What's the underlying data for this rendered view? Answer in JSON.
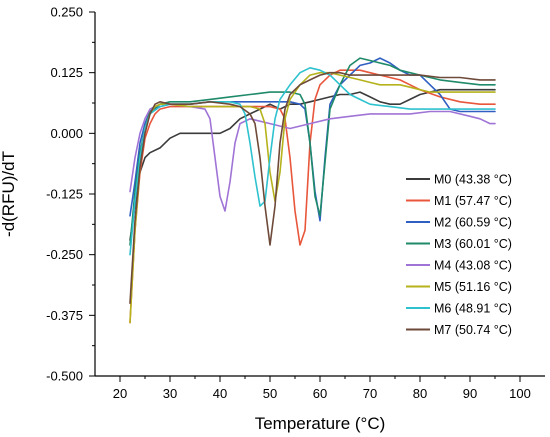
{
  "chart_data": {
    "type": "line",
    "title": "",
    "xlabel": "Temperature (°C)",
    "ylabel": "-d(RFU)/dT",
    "xlim": [
      15,
      105
    ],
    "ylim": [
      -0.5,
      0.25
    ],
    "x_ticks": [
      "20",
      "30",
      "40",
      "50",
      "60",
      "70",
      "80",
      "90",
      "100"
    ],
    "y_ticks": [
      "0.250",
      "0.125",
      "0.000",
      "-0.125",
      "-0.250",
      "-0.375",
      "-0.500"
    ],
    "grid": false,
    "legend_position": "right",
    "series": [
      {
        "name": "M0 (43.38 °C)",
        "color": "#3b3b3b",
        "points": [
          [
            22,
            -0.22
          ],
          [
            23,
            -0.15
          ],
          [
            24,
            -0.08
          ],
          [
            25,
            -0.05
          ],
          [
            26,
            -0.04
          ],
          [
            28,
            -0.03
          ],
          [
            30,
            -0.01
          ],
          [
            32,
            0.0
          ],
          [
            34,
            0.0
          ],
          [
            36,
            0.0
          ],
          [
            38,
            0.0
          ],
          [
            40,
            0.0
          ],
          [
            42,
            0.01
          ],
          [
            44,
            0.03
          ],
          [
            46,
            0.04
          ],
          [
            48,
            0.05
          ],
          [
            50,
            0.06
          ],
          [
            52,
            0.05
          ],
          [
            54,
            0.06
          ],
          [
            56,
            0.06
          ],
          [
            58,
            0.065
          ],
          [
            60,
            0.07
          ],
          [
            62,
            0.075
          ],
          [
            64,
            0.08
          ],
          [
            66,
            0.08
          ],
          [
            68,
            0.085
          ],
          [
            70,
            0.075
          ],
          [
            72,
            0.065
          ],
          [
            74,
            0.06
          ],
          [
            76,
            0.06
          ],
          [
            78,
            0.07
          ],
          [
            80,
            0.08
          ],
          [
            82,
            0.085
          ],
          [
            84,
            0.09
          ],
          [
            86,
            0.09
          ],
          [
            88,
            0.09
          ],
          [
            90,
            0.09
          ],
          [
            92,
            0.09
          ],
          [
            94,
            0.09
          ],
          [
            95,
            0.09
          ]
        ]
      },
      {
        "name": "M1 (57.47 °C)",
        "color": "#e8563b",
        "points": [
          [
            22,
            -0.39
          ],
          [
            23,
            -0.2
          ],
          [
            24,
            -0.08
          ],
          [
            25,
            -0.01
          ],
          [
            26,
            0.02
          ],
          [
            27,
            0.04
          ],
          [
            28,
            0.05
          ],
          [
            30,
            0.055
          ],
          [
            34,
            0.055
          ],
          [
            38,
            0.055
          ],
          [
            42,
            0.055
          ],
          [
            46,
            0.055
          ],
          [
            50,
            0.055
          ],
          [
            52,
            0.05
          ],
          [
            53,
            0.03
          ],
          [
            54,
            -0.05
          ],
          [
            55,
            -0.16
          ],
          [
            56,
            -0.23
          ],
          [
            57,
            -0.2
          ],
          [
            58,
            -0.02
          ],
          [
            59,
            0.07
          ],
          [
            60,
            0.1
          ],
          [
            62,
            0.12
          ],
          [
            64,
            0.13
          ],
          [
            66,
            0.13
          ],
          [
            68,
            0.13
          ],
          [
            70,
            0.125
          ],
          [
            72,
            0.12
          ],
          [
            74,
            0.115
          ],
          [
            76,
            0.11
          ],
          [
            78,
            0.1
          ],
          [
            80,
            0.09
          ],
          [
            84,
            0.075
          ],
          [
            88,
            0.065
          ],
          [
            92,
            0.06
          ],
          [
            95,
            0.06
          ]
        ]
      },
      {
        "name": "M2 (60.59 °C)",
        "color": "#2f5fc2",
        "points": [
          [
            22,
            -0.17
          ],
          [
            23,
            -0.1
          ],
          [
            24,
            -0.02
          ],
          [
            25,
            0.02
          ],
          [
            26,
            0.045
          ],
          [
            28,
            0.055
          ],
          [
            30,
            0.06
          ],
          [
            34,
            0.06
          ],
          [
            38,
            0.065
          ],
          [
            42,
            0.065
          ],
          [
            46,
            0.065
          ],
          [
            50,
            0.065
          ],
          [
            54,
            0.065
          ],
          [
            56,
            0.06
          ],
          [
            57,
            0.05
          ],
          [
            58,
            -0.02
          ],
          [
            59,
            -0.12
          ],
          [
            60,
            -0.18
          ],
          [
            61,
            -0.05
          ],
          [
            62,
            0.06
          ],
          [
            64,
            0.1
          ],
          [
            66,
            0.12
          ],
          [
            68,
            0.14
          ],
          [
            70,
            0.145
          ],
          [
            72,
            0.155
          ],
          [
            74,
            0.145
          ],
          [
            76,
            0.13
          ],
          [
            78,
            0.12
          ],
          [
            80,
            0.12
          ],
          [
            82,
            0.1
          ],
          [
            84,
            0.08
          ],
          [
            86,
            0.05
          ],
          [
            88,
            0.045
          ],
          [
            92,
            0.045
          ],
          [
            95,
            0.045
          ]
        ]
      },
      {
        "name": "M3 (60.01 °C)",
        "color": "#1f8a6a",
        "points": [
          [
            22,
            -0.23
          ],
          [
            23,
            -0.12
          ],
          [
            24,
            -0.04
          ],
          [
            25,
            0.01
          ],
          [
            26,
            0.045
          ],
          [
            28,
            0.06
          ],
          [
            30,
            0.065
          ],
          [
            34,
            0.065
          ],
          [
            38,
            0.07
          ],
          [
            42,
            0.075
          ],
          [
            46,
            0.08
          ],
          [
            50,
            0.085
          ],
          [
            54,
            0.085
          ],
          [
            56,
            0.08
          ],
          [
            57,
            0.06
          ],
          [
            58,
            -0.02
          ],
          [
            59,
            -0.13
          ],
          [
            60,
            -0.17
          ],
          [
            61,
            -0.06
          ],
          [
            62,
            0.05
          ],
          [
            64,
            0.1
          ],
          [
            66,
            0.14
          ],
          [
            68,
            0.155
          ],
          [
            70,
            0.15
          ],
          [
            72,
            0.145
          ],
          [
            74,
            0.14
          ],
          [
            76,
            0.13
          ],
          [
            78,
            0.125
          ],
          [
            80,
            0.12
          ],
          [
            84,
            0.11
          ],
          [
            88,
            0.105
          ],
          [
            92,
            0.1
          ],
          [
            95,
            0.1
          ]
        ]
      },
      {
        "name": "M4 (43.08 °C)",
        "color": "#a074d6",
        "points": [
          [
            22,
            -0.12
          ],
          [
            23,
            -0.05
          ],
          [
            24,
            0.0
          ],
          [
            25,
            0.03
          ],
          [
            26,
            0.05
          ],
          [
            28,
            0.06
          ],
          [
            30,
            0.06
          ],
          [
            34,
            0.055
          ],
          [
            37,
            0.05
          ],
          [
            38,
            0.03
          ],
          [
            39,
            -0.05
          ],
          [
            40,
            -0.13
          ],
          [
            41,
            -0.16
          ],
          [
            42,
            -0.1
          ],
          [
            43,
            -0.02
          ],
          [
            44,
            0.02
          ],
          [
            46,
            0.03
          ],
          [
            50,
            0.02
          ],
          [
            54,
            0.01
          ],
          [
            58,
            0.02
          ],
          [
            62,
            0.03
          ],
          [
            66,
            0.035
          ],
          [
            70,
            0.04
          ],
          [
            74,
            0.04
          ],
          [
            78,
            0.04
          ],
          [
            82,
            0.045
          ],
          [
            86,
            0.045
          ],
          [
            90,
            0.035
          ],
          [
            92,
            0.03
          ],
          [
            94,
            0.02
          ],
          [
            95,
            0.02
          ]
        ]
      },
      {
        "name": "M5 (51.16 °C)",
        "color": "#b5b21b",
        "points": [
          [
            22,
            -0.39
          ],
          [
            23,
            -0.2
          ],
          [
            24,
            -0.07
          ],
          [
            25,
            0.01
          ],
          [
            26,
            0.04
          ],
          [
            27,
            0.055
          ],
          [
            28,
            0.06
          ],
          [
            30,
            0.06
          ],
          [
            34,
            0.055
          ],
          [
            38,
            0.055
          ],
          [
            42,
            0.055
          ],
          [
            46,
            0.055
          ],
          [
            48,
            0.05
          ],
          [
            49,
            0.02
          ],
          [
            50,
            -0.08
          ],
          [
            51,
            -0.14
          ],
          [
            52,
            -0.08
          ],
          [
            53,
            0.03
          ],
          [
            54,
            0.07
          ],
          [
            56,
            0.1
          ],
          [
            58,
            0.12
          ],
          [
            60,
            0.125
          ],
          [
            62,
            0.125
          ],
          [
            64,
            0.12
          ],
          [
            66,
            0.115
          ],
          [
            68,
            0.11
          ],
          [
            70,
            0.105
          ],
          [
            72,
            0.1
          ],
          [
            74,
            0.1
          ],
          [
            76,
            0.1
          ],
          [
            78,
            0.095
          ],
          [
            80,
            0.09
          ],
          [
            82,
            0.085
          ],
          [
            84,
            0.085
          ],
          [
            88,
            0.085
          ],
          [
            92,
            0.085
          ],
          [
            95,
            0.085
          ]
        ]
      },
      {
        "name": "M6 (48.91 °C)",
        "color": "#2ec2cf",
        "points": [
          [
            22,
            -0.25
          ],
          [
            23,
            -0.14
          ],
          [
            24,
            -0.05
          ],
          [
            25,
            0.01
          ],
          [
            26,
            0.04
          ],
          [
            28,
            0.055
          ],
          [
            30,
            0.06
          ],
          [
            34,
            0.06
          ],
          [
            38,
            0.065
          ],
          [
            42,
            0.065
          ],
          [
            44,
            0.06
          ],
          [
            45,
            0.04
          ],
          [
            46,
            -0.02
          ],
          [
            47,
            -0.09
          ],
          [
            48,
            -0.15
          ],
          [
            49,
            -0.14
          ],
          [
            50,
            -0.05
          ],
          [
            51,
            0.03
          ],
          [
            52,
            0.07
          ],
          [
            54,
            0.1
          ],
          [
            56,
            0.125
          ],
          [
            58,
            0.135
          ],
          [
            60,
            0.13
          ],
          [
            62,
            0.12
          ],
          [
            64,
            0.1
          ],
          [
            66,
            0.08
          ],
          [
            68,
            0.07
          ],
          [
            70,
            0.06
          ],
          [
            74,
            0.055
          ],
          [
            78,
            0.05
          ],
          [
            82,
            0.05
          ],
          [
            86,
            0.05
          ],
          [
            90,
            0.05
          ],
          [
            95,
            0.05
          ]
        ]
      },
      {
        "name": "M7 (50.74 °C)",
        "color": "#6e4a3a",
        "points": [
          [
            22,
            -0.35
          ],
          [
            23,
            -0.18
          ],
          [
            24,
            -0.07
          ],
          [
            25,
            0.0
          ],
          [
            26,
            0.04
          ],
          [
            27,
            0.06
          ],
          [
            28,
            0.065
          ],
          [
            30,
            0.06
          ],
          [
            34,
            0.06
          ],
          [
            38,
            0.065
          ],
          [
            42,
            0.06
          ],
          [
            44,
            0.055
          ],
          [
            46,
            0.04
          ],
          [
            47,
            0.02
          ],
          [
            48,
            -0.05
          ],
          [
            49,
            -0.15
          ],
          [
            50,
            -0.23
          ],
          [
            51,
            -0.15
          ],
          [
            52,
            -0.02
          ],
          [
            53,
            0.05
          ],
          [
            54,
            0.08
          ],
          [
            56,
            0.1
          ],
          [
            58,
            0.11
          ],
          [
            60,
            0.12
          ],
          [
            62,
            0.125
          ],
          [
            64,
            0.125
          ],
          [
            66,
            0.12
          ],
          [
            68,
            0.12
          ],
          [
            70,
            0.12
          ],
          [
            72,
            0.12
          ],
          [
            76,
            0.12
          ],
          [
            80,
            0.12
          ],
          [
            84,
            0.115
          ],
          [
            88,
            0.115
          ],
          [
            92,
            0.11
          ],
          [
            95,
            0.11
          ]
        ]
      }
    ]
  }
}
